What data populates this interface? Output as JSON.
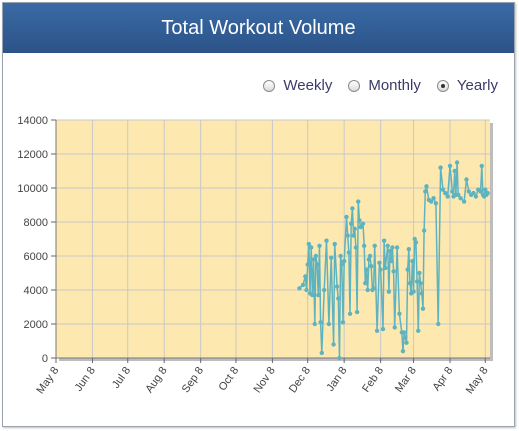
{
  "header": {
    "title": "Total Workout Volume"
  },
  "range_selector": {
    "options": [
      {
        "label": "Weekly",
        "selected": false
      },
      {
        "label": "Monthly",
        "selected": false
      },
      {
        "label": "Yearly",
        "selected": true
      }
    ]
  },
  "colors": {
    "header": "#2f5b92",
    "plot_background": "#fde9b0",
    "series_line": "#5fb3bf",
    "gridline": "#c8c8c8"
  },
  "chart_data": {
    "type": "line",
    "title": "",
    "xlabel": "",
    "ylabel": "",
    "ylim": [
      0,
      14000
    ],
    "yticks": [
      0,
      2000,
      4000,
      6000,
      8000,
      10000,
      12000,
      14000
    ],
    "xlim": [
      "2012-05-08",
      "2013-05-12"
    ],
    "xticks": [
      {
        "date": "2012-05-08",
        "label": "May 8"
      },
      {
        "date": "2012-06-08",
        "label": "Jun 8"
      },
      {
        "date": "2012-07-08",
        "label": "Jul 8"
      },
      {
        "date": "2012-08-08",
        "label": "Aug 8"
      },
      {
        "date": "2012-09-08",
        "label": "Sep 8"
      },
      {
        "date": "2012-10-08",
        "label": "Oct 8"
      },
      {
        "date": "2012-11-08",
        "label": "Nov 8"
      },
      {
        "date": "2012-12-08",
        "label": "Dec 8"
      },
      {
        "date": "2013-01-08",
        "label": "Jan 8"
      },
      {
        "date": "2013-02-08",
        "label": "Feb 8"
      },
      {
        "date": "2013-03-08",
        "label": "Mar 8"
      },
      {
        "date": "2013-04-08",
        "label": "Apr 8"
      },
      {
        "date": "2013-05-08",
        "label": "May 8"
      }
    ],
    "grid": true,
    "legend": "none",
    "series": [
      {
        "x": [
          "2012-12-01",
          "2012-12-04",
          "2012-12-06",
          "2012-12-07",
          "2012-12-08",
          "2012-12-09",
          "2012-12-10",
          "2012-12-11",
          "2012-12-12",
          "2012-12-13",
          "2012-12-14",
          "2012-12-15",
          "2012-12-16",
          "2012-12-17",
          "2012-12-18",
          "2012-12-19",
          "2012-12-20",
          "2012-12-22",
          "2012-12-24",
          "2012-12-26",
          "2012-12-28",
          "2012-12-30",
          "2012-12-31",
          "2013-01-02",
          "2013-01-03",
          "2013-01-04",
          "2013-01-05",
          "2013-01-06",
          "2013-01-07",
          "2013-01-08",
          "2013-01-10",
          "2013-01-11",
          "2013-01-12",
          "2013-01-13",
          "2013-01-14",
          "2013-01-15",
          "2013-01-16",
          "2013-01-17",
          "2013-01-18",
          "2013-01-19",
          "2013-01-20",
          "2013-01-21",
          "2013-01-22",
          "2013-01-24",
          "2013-01-25",
          "2013-01-26",
          "2013-01-27",
          "2013-01-28",
          "2013-01-29",
          "2013-01-30",
          "2013-01-31",
          "2013-02-01",
          "2013-02-02",
          "2013-02-03",
          "2013-02-05",
          "2013-02-07",
          "2013-02-08",
          "2013-02-10",
          "2013-02-11",
          "2013-02-12",
          "2013-02-14",
          "2013-02-15",
          "2013-02-16",
          "2013-02-17",
          "2013-02-18",
          "2013-02-19",
          "2013-02-20",
          "2013-02-22",
          "2013-02-24",
          "2013-02-26",
          "2013-02-27",
          "2013-02-28",
          "2013-03-01",
          "2013-03-02",
          "2013-03-03",
          "2013-03-04",
          "2013-03-05",
          "2013-03-06",
          "2013-03-07",
          "2013-03-08",
          "2013-03-09",
          "2013-03-10",
          "2013-03-11",
          "2013-03-12",
          "2013-03-13",
          "2013-03-14",
          "2013-03-15",
          "2013-03-16",
          "2013-03-17",
          "2013-03-18",
          "2013-03-19",
          "2013-03-21",
          "2013-03-23",
          "2013-03-25",
          "2013-03-27",
          "2013-03-29",
          "2013-03-31",
          "2013-04-02",
          "2013-04-04",
          "2013-04-06",
          "2013-04-08",
          "2013-04-10",
          "2013-04-11",
          "2013-04-12",
          "2013-04-13",
          "2013-04-14",
          "2013-04-15",
          "2013-04-17",
          "2013-04-20",
          "2013-04-22",
          "2013-04-24",
          "2013-04-26",
          "2013-04-28",
          "2013-04-30",
          "2013-05-02",
          "2013-05-04",
          "2013-05-05",
          "2013-05-06",
          "2013-05-07",
          "2013-05-08",
          "2013-05-09",
          "2013-05-10"
        ],
        "y": [
          4100,
          4300,
          4800,
          4000,
          5500,
          6700,
          3800,
          6500,
          3700,
          5800,
          2000,
          6000,
          5500,
          3700,
          6600,
          2100,
          300,
          4000,
          6900,
          2000,
          5900,
          800,
          6700,
          4200,
          3500,
          0,
          6000,
          5500,
          2100,
          5700,
          8300,
          7200,
          6200,
          2600,
          7900,
          8800,
          7200,
          7600,
          6500,
          2700,
          9200,
          8100,
          7700,
          7900,
          6600,
          4400,
          5200,
          4000,
          5800,
          6000,
          5400,
          4000,
          4100,
          6600,
          1600,
          5600,
          5200,
          1700,
          6900,
          5300,
          6600,
          3900,
          6300,
          5700,
          6500,
          5100,
          1800,
          6500,
          2600,
          1500,
          400,
          1500,
          1200,
          900,
          5200,
          6400,
          4400,
          3800,
          5700,
          3900,
          7000,
          6800,
          4500,
          1600,
          5000,
          4400,
          3800,
          2900,
          7500,
          9800,
          10100,
          9300,
          9200,
          9400,
          9100,
          2000,
          11200,
          9900,
          9700,
          9500,
          11300,
          9800,
          9500,
          11000,
          9600,
          11500,
          9600,
          9400,
          9200,
          10500,
          9800,
          9600,
          9700,
          9500,
          9900,
          9800,
          11300,
          9600,
          9500,
          9900,
          9600,
          9700
        ]
      }
    ]
  }
}
